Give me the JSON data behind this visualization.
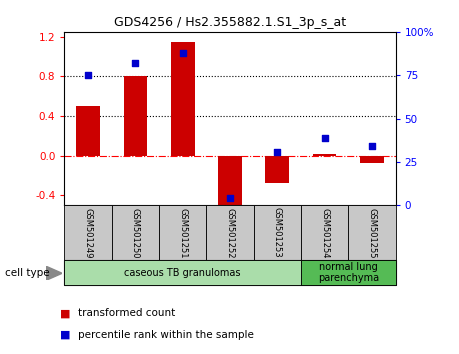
{
  "title": "GDS4256 / Hs2.355882.1.S1_3p_s_at",
  "samples": [
    "GSM501249",
    "GSM501250",
    "GSM501251",
    "GSM501252",
    "GSM501253",
    "GSM501254",
    "GSM501255"
  ],
  "transformed_count": [
    0.5,
    0.8,
    1.15,
    -0.5,
    -0.27,
    0.02,
    -0.07
  ],
  "percentile_rank_pct": [
    75,
    82,
    88,
    4,
    31,
    39,
    34
  ],
  "ylim_left": [
    -0.5,
    1.25
  ],
  "ylim_right": [
    0,
    100
  ],
  "yticks_left": [
    -0.4,
    0.0,
    0.4,
    0.8,
    1.2
  ],
  "yticks_right": [
    0,
    25,
    50,
    75,
    100
  ],
  "ytick_labels_right": [
    "0",
    "25",
    "50",
    "75",
    "100%"
  ],
  "hlines": [
    0.0,
    0.4,
    0.8
  ],
  "hline_styles": [
    "dashdot",
    "dotted",
    "dotted"
  ],
  "hline_colors": [
    "red",
    "black",
    "black"
  ],
  "bar_color": "#cc0000",
  "dot_color": "#0000cc",
  "cell_type_groups": [
    {
      "label": "caseous TB granulomas",
      "n_samples": 5,
      "color": "#aaddaa"
    },
    {
      "label": "normal lung\nparenchyma",
      "n_samples": 2,
      "color": "#55bb55"
    }
  ],
  "cell_type_label": "cell type",
  "legend_entries": [
    "transformed count",
    "percentile rank within the sample"
  ],
  "legend_colors": [
    "#cc0000",
    "#0000cc"
  ],
  "bg_color": "#ffffff",
  "plot_bg": "#ffffff",
  "label_box_color": "#c8c8c8"
}
